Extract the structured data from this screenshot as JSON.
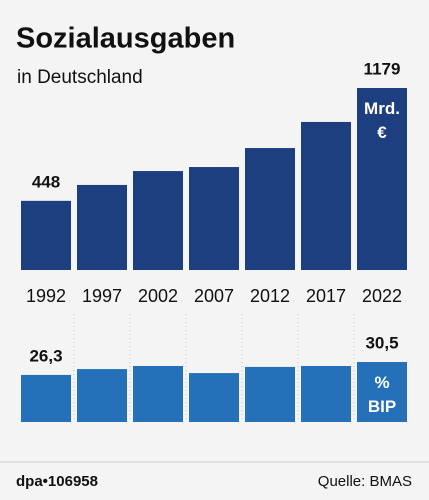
{
  "header": {
    "title": "Sozialausgaben",
    "subtitle": "in Deutschland"
  },
  "chart_data": [
    {
      "type": "bar",
      "categories": [
        "1992",
        "1997",
        "2002",
        "2007",
        "2012",
        "2017",
        "2022"
      ],
      "values": [
        448,
        551,
        641,
        667,
        790,
        959,
        1179
      ],
      "value_labels": [
        "448",
        null,
        null,
        null,
        null,
        null,
        "1179"
      ],
      "unit_label": "Mrd. €",
      "color": "#1d3f80",
      "ylim": [
        0,
        1179
      ]
    },
    {
      "type": "bar",
      "values": [
        26.3,
        28.2,
        29.2,
        26.9,
        28.9,
        29.2,
        30.5
      ],
      "value_labels": [
        "26,3",
        null,
        null,
        null,
        null,
        null,
        "30,5"
      ],
      "unit_label": "% BIP",
      "color": "#2471b9",
      "ylim": [
        11,
        30.5
      ]
    }
  ],
  "footer": {
    "source_id": "dpa•106958",
    "source": "Quelle: BMAS"
  }
}
